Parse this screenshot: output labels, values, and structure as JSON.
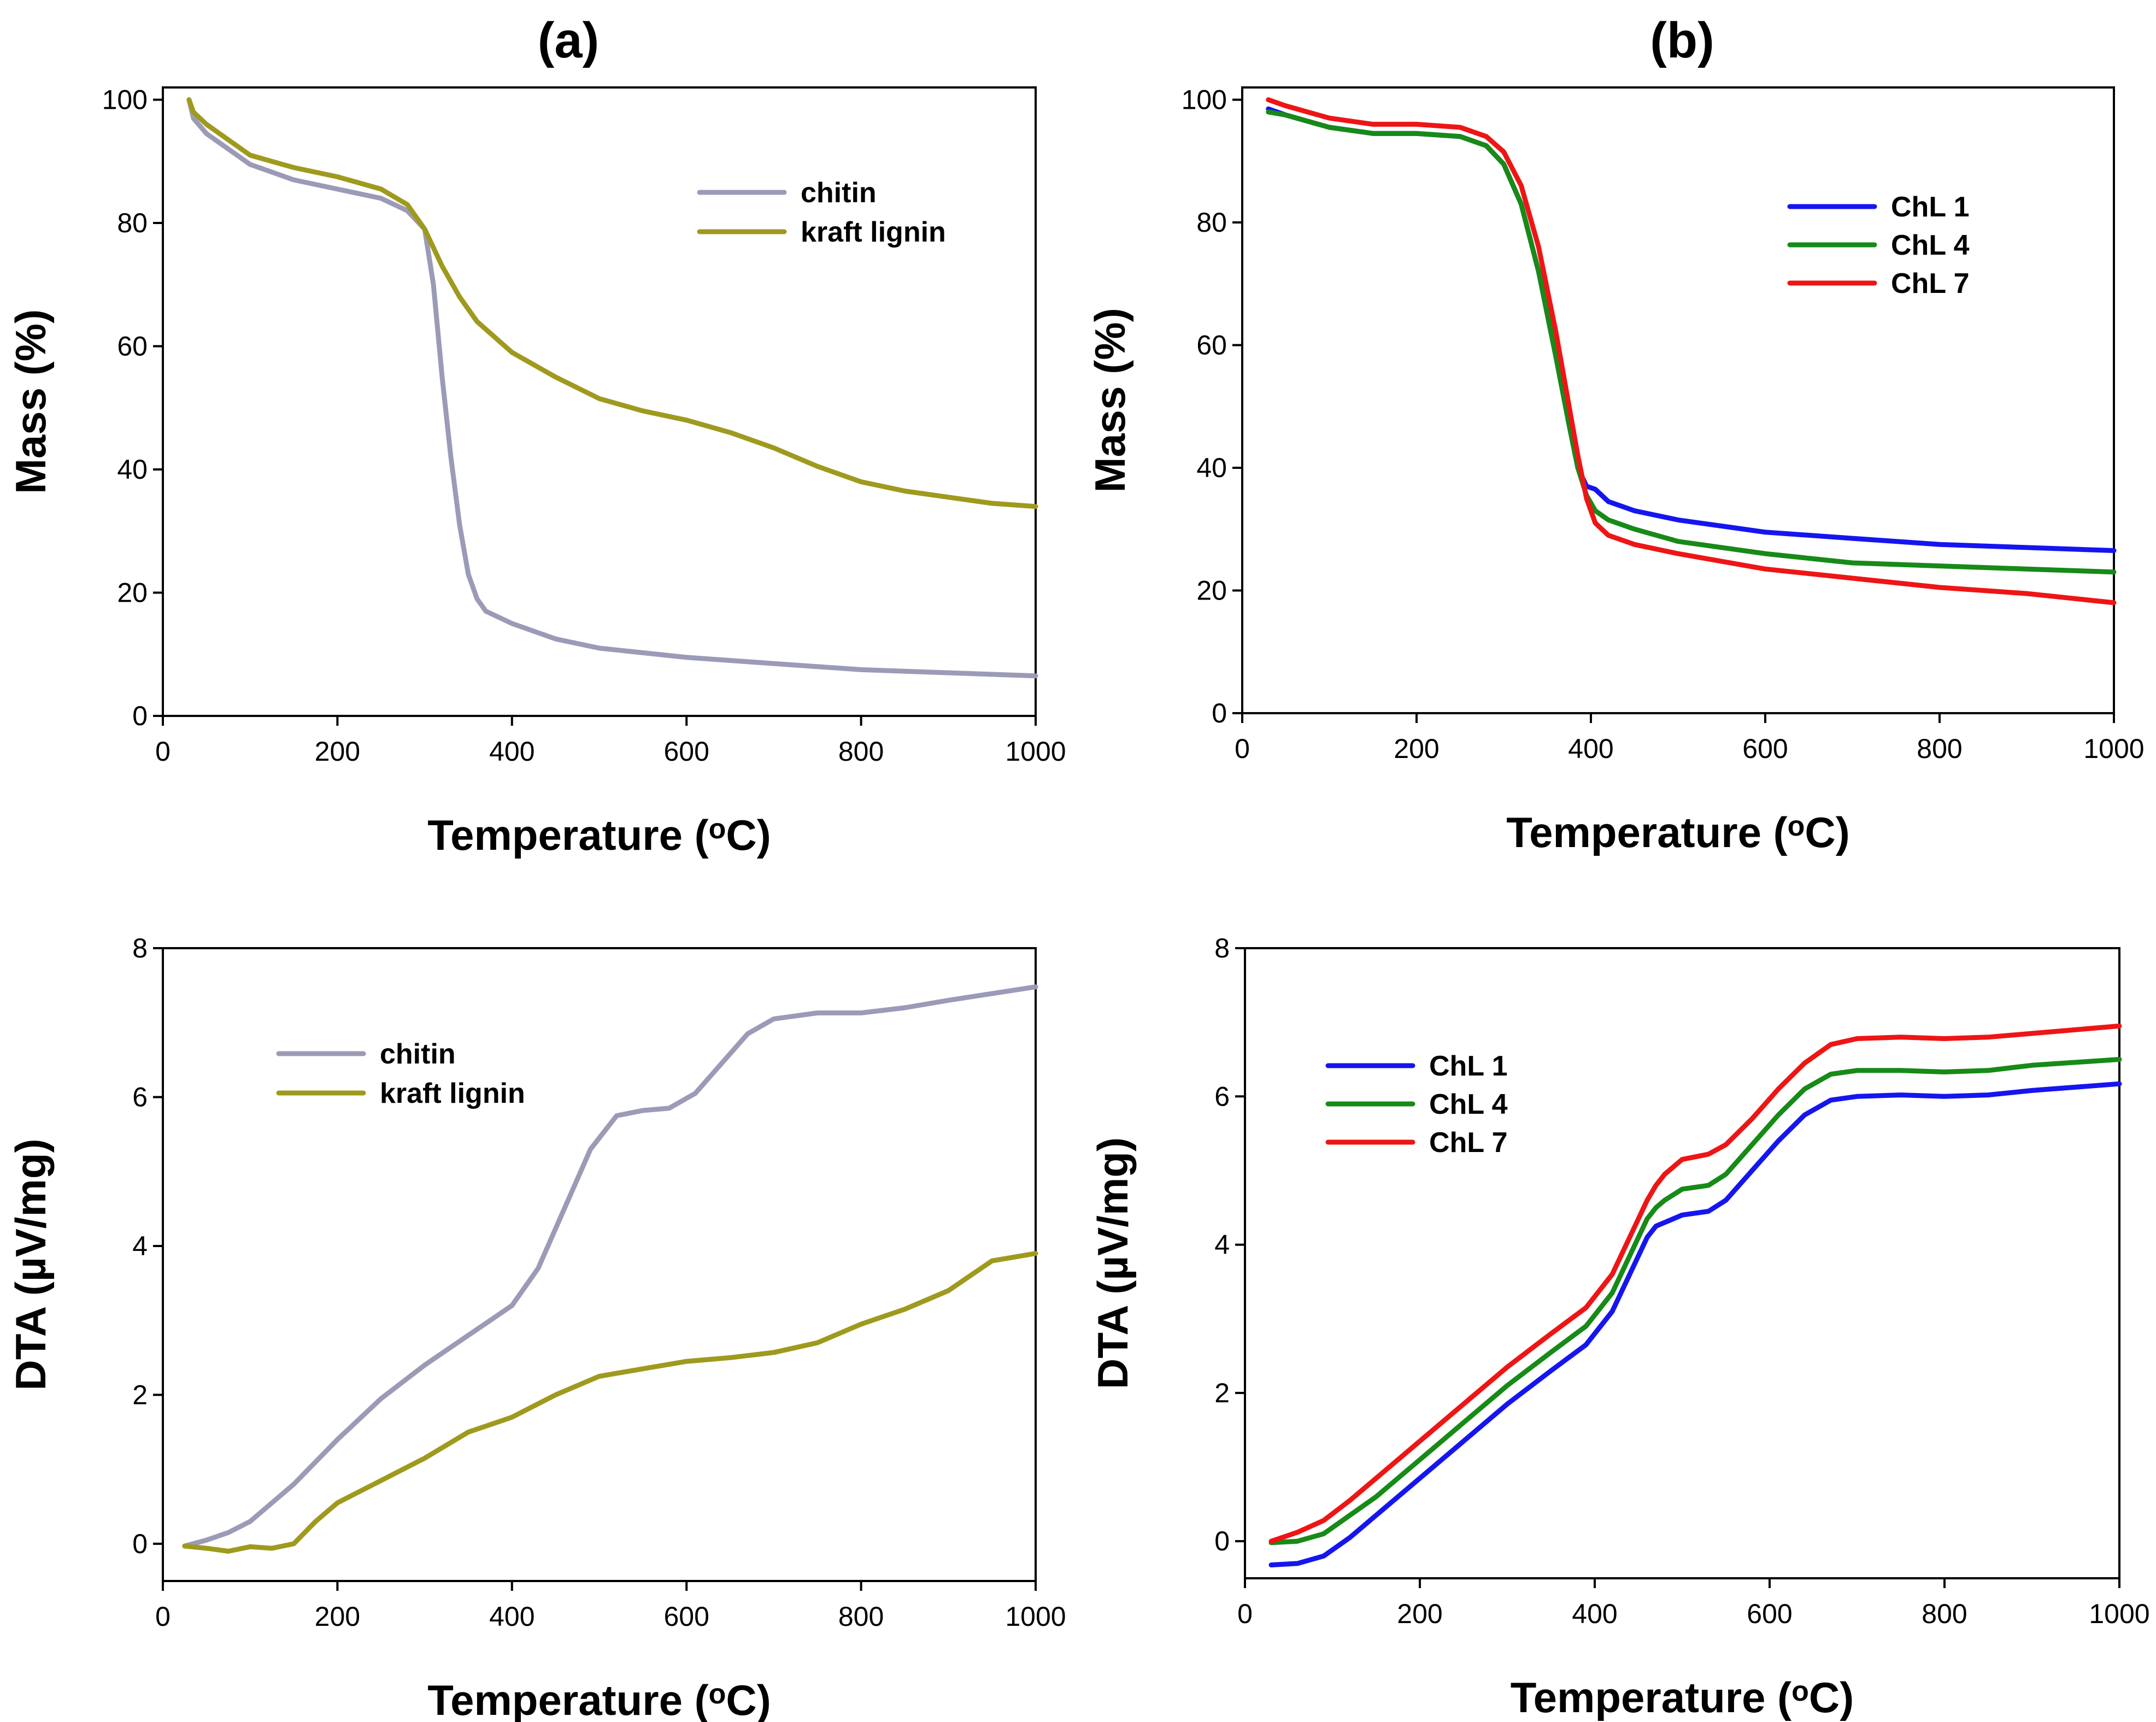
{
  "figure": {
    "panel_labels": [
      "(a)",
      "(b)"
    ]
  },
  "chart_data": [
    {
      "id": "tga-a",
      "type": "line",
      "title": "",
      "xlabel": "Temperature (°C)",
      "ylabel": "Mass (%)",
      "xlim": [
        0,
        1000
      ],
      "ylim": [
        0,
        102
      ],
      "xticks": [
        0,
        200,
        400,
        600,
        800,
        1000
      ],
      "yticks": [
        0,
        20,
        40,
        60,
        80,
        100
      ],
      "legend": "right",
      "series": [
        {
          "name": "chitin",
          "color": "#9b9bb8",
          "x": [
            30,
            35,
            50,
            75,
            100,
            150,
            200,
            250,
            280,
            300,
            310,
            320,
            330,
            340,
            350,
            360,
            370,
            385,
            400,
            450,
            500,
            600,
            700,
            800,
            900,
            1000
          ],
          "y": [
            100,
            97,
            94.5,
            92,
            89.5,
            87,
            85.5,
            84,
            82,
            79,
            70,
            55,
            42,
            31,
            23,
            19,
            17,
            16,
            15,
            12.5,
            11,
            9.5,
            8.5,
            7.5,
            7,
            6.5
          ]
        },
        {
          "name": "kraft lignin",
          "color": "#9f9a1e",
          "x": [
            30,
            35,
            50,
            75,
            100,
            150,
            200,
            250,
            280,
            300,
            320,
            340,
            360,
            400,
            450,
            500,
            550,
            600,
            650,
            700,
            750,
            800,
            850,
            900,
            950,
            1000
          ],
          "y": [
            100,
            98,
            96,
            93.5,
            91,
            89,
            87.5,
            85.5,
            83,
            79,
            73,
            68,
            64,
            59,
            55,
            51.5,
            49.5,
            48,
            46,
            43.5,
            40.5,
            38,
            36.5,
            35.5,
            34.5,
            34
          ]
        }
      ]
    },
    {
      "id": "tga-b",
      "type": "line",
      "title": "",
      "xlabel": "Temperature (°C)",
      "ylabel": "Mass (%)",
      "xlim": [
        0,
        1000
      ],
      "ylim": [
        0,
        102
      ],
      "xticks": [
        0,
        200,
        400,
        600,
        800,
        1000
      ],
      "yticks": [
        0,
        20,
        40,
        60,
        80,
        100
      ],
      "legend": "top-right",
      "series": [
        {
          "name": "ChL 1",
          "color": "#1515f0",
          "x": [
            30,
            50,
            100,
            150,
            200,
            250,
            280,
            300,
            320,
            340,
            360,
            375,
            385,
            395,
            405,
            420,
            450,
            500,
            600,
            700,
            800,
            900,
            1000
          ],
          "y": [
            98.5,
            97.5,
            95.5,
            94.5,
            94.5,
            94,
            92.5,
            89.5,
            83,
            72,
            58,
            47,
            40,
            37,
            36.5,
            34.5,
            33,
            31.5,
            29.5,
            28.5,
            27.5,
            27,
            26.5
          ]
        },
        {
          "name": "ChL 4",
          "color": "#178a17",
          "x": [
            30,
            50,
            100,
            150,
            200,
            250,
            280,
            300,
            320,
            340,
            360,
            375,
            385,
            395,
            405,
            420,
            450,
            500,
            600,
            700,
            800,
            900,
            1000
          ],
          "y": [
            98,
            97.5,
            95.5,
            94.5,
            94.5,
            94,
            92.5,
            89.5,
            83,
            72,
            58,
            47,
            40,
            35.5,
            33,
            31.5,
            30,
            28,
            26,
            24.5,
            24,
            23.5,
            23
          ]
        },
        {
          "name": "ChL 7",
          "color": "#ee1515",
          "x": [
            30,
            50,
            100,
            150,
            200,
            250,
            280,
            300,
            320,
            340,
            360,
            375,
            385,
            395,
            405,
            420,
            450,
            500,
            600,
            700,
            800,
            900,
            1000
          ],
          "y": [
            100,
            99,
            97,
            96,
            96,
            95.5,
            94,
            91.5,
            86,
            76,
            62,
            50,
            42,
            35,
            31,
            29,
            27.5,
            26,
            23.5,
            22,
            20.5,
            19.5,
            18
          ]
        }
      ]
    },
    {
      "id": "dta-a",
      "type": "line",
      "title": "",
      "xlabel": "Temperature (°C)",
      "ylabel": "DTA (µV/mg)",
      "xlim": [
        0,
        1000
      ],
      "ylim": [
        -0.5,
        8
      ],
      "xticks": [
        0,
        200,
        400,
        600,
        800,
        1000
      ],
      "yticks": [
        0,
        2,
        4,
        6,
        8
      ],
      "legend": "top-left",
      "series": [
        {
          "name": "chitin",
          "color": "#9b9bb8",
          "x": [
            25,
            50,
            75,
            100,
            125,
            150,
            200,
            250,
            300,
            350,
            400,
            430,
            460,
            490,
            520,
            550,
            580,
            610,
            640,
            670,
            700,
            750,
            800,
            850,
            900,
            1000
          ],
          "y": [
            -0.03,
            0.05,
            0.15,
            0.3,
            0.55,
            0.8,
            1.4,
            1.95,
            2.4,
            2.8,
            3.2,
            3.7,
            4.5,
            5.3,
            5.75,
            5.82,
            5.85,
            6.05,
            6.45,
            6.85,
            7.05,
            7.13,
            7.13,
            7.2,
            7.3,
            7.48
          ]
        },
        {
          "name": "kraft lignin",
          "color": "#9f9a1e",
          "x": [
            25,
            50,
            75,
            100,
            125,
            150,
            175,
            200,
            250,
            300,
            350,
            400,
            450,
            500,
            550,
            600,
            650,
            700,
            750,
            800,
            850,
            900,
            950,
            1000
          ],
          "y": [
            -0.03,
            -0.06,
            -0.1,
            -0.04,
            -0.06,
            0.0,
            0.3,
            0.55,
            0.85,
            1.15,
            1.5,
            1.7,
            2.0,
            2.25,
            2.35,
            2.45,
            2.5,
            2.57,
            2.7,
            2.95,
            3.15,
            3.4,
            3.8,
            3.9
          ]
        }
      ]
    },
    {
      "id": "dta-b",
      "type": "line",
      "title": "",
      "xlabel": "Temperature (°C)",
      "ylabel": "DTA (µV/mg)",
      "xlim": [
        0,
        1000
      ],
      "ylim": [
        -0.5,
        8
      ],
      "xticks": [
        0,
        200,
        400,
        600,
        800,
        1000
      ],
      "yticks": [
        0,
        2,
        4,
        6,
        8
      ],
      "legend": "top-left",
      "series": [
        {
          "name": "ChL 1",
          "color": "#1515f0",
          "x": [
            30,
            60,
            90,
            120,
            150,
            200,
            250,
            300,
            350,
            390,
            420,
            440,
            460,
            470,
            480,
            500,
            530,
            550,
            580,
            610,
            640,
            670,
            700,
            750,
            800,
            850,
            900,
            1000
          ],
          "y": [
            -0.32,
            -0.3,
            -0.2,
            0.05,
            0.35,
            0.85,
            1.35,
            1.85,
            2.3,
            2.65,
            3.1,
            3.6,
            4.1,
            4.25,
            4.3,
            4.4,
            4.45,
            4.6,
            5.0,
            5.4,
            5.75,
            5.95,
            6.0,
            6.02,
            6.0,
            6.02,
            6.08,
            6.17
          ]
        },
        {
          "name": "ChL 4",
          "color": "#178a17",
          "x": [
            30,
            60,
            90,
            120,
            150,
            200,
            250,
            300,
            350,
            390,
            420,
            440,
            460,
            470,
            480,
            500,
            530,
            550,
            580,
            610,
            640,
            670,
            700,
            750,
            800,
            850,
            900,
            1000
          ],
          "y": [
            -0.02,
            0.0,
            0.1,
            0.35,
            0.6,
            1.1,
            1.6,
            2.1,
            2.55,
            2.9,
            3.35,
            3.85,
            4.35,
            4.5,
            4.6,
            4.75,
            4.8,
            4.95,
            5.35,
            5.75,
            6.1,
            6.3,
            6.35,
            6.35,
            6.33,
            6.35,
            6.42,
            6.5
          ]
        },
        {
          "name": "ChL 7",
          "color": "#ee1515",
          "x": [
            30,
            60,
            90,
            120,
            150,
            200,
            250,
            300,
            350,
            390,
            420,
            440,
            460,
            470,
            480,
            500,
            530,
            550,
            580,
            610,
            640,
            670,
            700,
            750,
            800,
            850,
            900,
            1000
          ],
          "y": [
            0.0,
            0.12,
            0.28,
            0.55,
            0.85,
            1.35,
            1.85,
            2.35,
            2.8,
            3.15,
            3.6,
            4.1,
            4.6,
            4.8,
            4.95,
            5.15,
            5.22,
            5.35,
            5.7,
            6.1,
            6.45,
            6.7,
            6.78,
            6.8,
            6.78,
            6.8,
            6.85,
            6.95
          ]
        }
      ]
    }
  ]
}
